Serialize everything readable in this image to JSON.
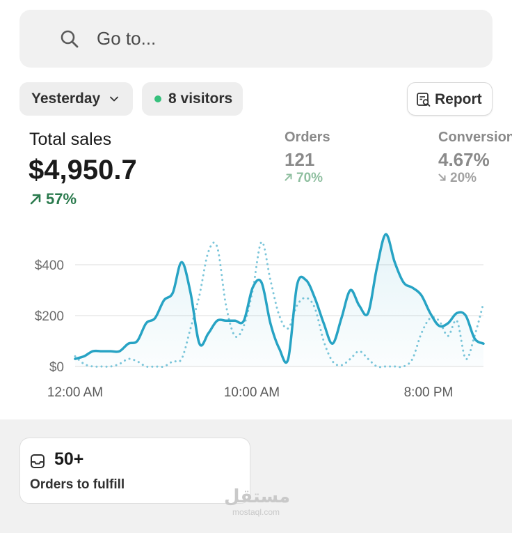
{
  "search": {
    "placeholder": "Go to...",
    "icon": "search-icon"
  },
  "filters": {
    "date": "Yesterday",
    "visitors": "8 visitors",
    "visitors_dot_color": "#36c07c",
    "report_label": "Report"
  },
  "metrics": {
    "total_sales": {
      "label": "Total sales",
      "value": "$4,950.7",
      "change": "57%",
      "direction": "up"
    },
    "orders": {
      "label": "Orders",
      "value": "121",
      "change": "70%",
      "direction": "up"
    },
    "conversion": {
      "label": "Conversion",
      "value": "4.67%",
      "change": "20%",
      "direction": "down"
    }
  },
  "chart_data": {
    "type": "line",
    "x_tick_labels": [
      "12:00 AM",
      "10:00 AM",
      "8:00 PM"
    ],
    "y_tick_labels": [
      "$0",
      "$200",
      "$400"
    ],
    "ylim": [
      0,
      550
    ],
    "xlim": [
      0,
      23
    ],
    "grid": true,
    "series": [
      {
        "style": "solid",
        "color": "#27a3c4",
        "x": [
          0,
          0.5,
          1,
          1.5,
          2,
          2.5,
          3,
          3.5,
          4,
          4.5,
          5,
          5.5,
          6,
          6.5,
          7,
          7.5,
          8,
          8.5,
          9,
          9.5,
          10,
          10.5,
          11,
          11.5,
          12,
          12.5,
          13,
          13.5,
          14,
          14.5,
          15,
          15.5,
          16,
          16.5,
          17,
          17.5,
          18,
          18.5,
          19,
          19.5,
          20,
          20.5,
          21,
          21.5,
          22,
          22.5,
          23
        ],
        "values": [
          30,
          40,
          60,
          60,
          60,
          60,
          90,
          100,
          170,
          190,
          260,
          290,
          410,
          290,
          90,
          130,
          180,
          180,
          180,
          180,
          310,
          330,
          170,
          70,
          30,
          320,
          340,
          270,
          170,
          90,
          190,
          300,
          240,
          210,
          390,
          520,
          410,
          330,
          310,
          280,
          210,
          160,
          170,
          210,
          200,
          110,
          90
        ]
      },
      {
        "style": "dotted",
        "color": "#7cc6da",
        "x": [
          0,
          0.5,
          1,
          1.5,
          2,
          2.5,
          3,
          3.5,
          4,
          4.5,
          5,
          5.5,
          6,
          6.5,
          7,
          7.5,
          8,
          8.5,
          9,
          9.5,
          10,
          10.5,
          11,
          11.5,
          12,
          12.5,
          13,
          13.5,
          14,
          14.5,
          15,
          15.5,
          16,
          16.5,
          17,
          17.5,
          18,
          18.5,
          19,
          19.5,
          20,
          20.5,
          21,
          21.5,
          22,
          22.5,
          23
        ],
        "values": [
          40,
          10,
          0,
          0,
          0,
          10,
          30,
          20,
          0,
          0,
          0,
          20,
          30,
          150,
          280,
          450,
          470,
          240,
          120,
          160,
          300,
          490,
          340,
          200,
          150,
          240,
          270,
          230,
          100,
          20,
          5,
          30,
          60,
          30,
          0,
          0,
          0,
          0,
          30,
          130,
          190,
          180,
          120,
          180,
          30,
          120,
          250
        ]
      }
    ]
  },
  "bottom": {
    "fulfill_count": "50+",
    "fulfill_label": "Orders to fulfill"
  },
  "watermark": {
    "arabic": "مستقل",
    "latin": "mostaql.com"
  }
}
